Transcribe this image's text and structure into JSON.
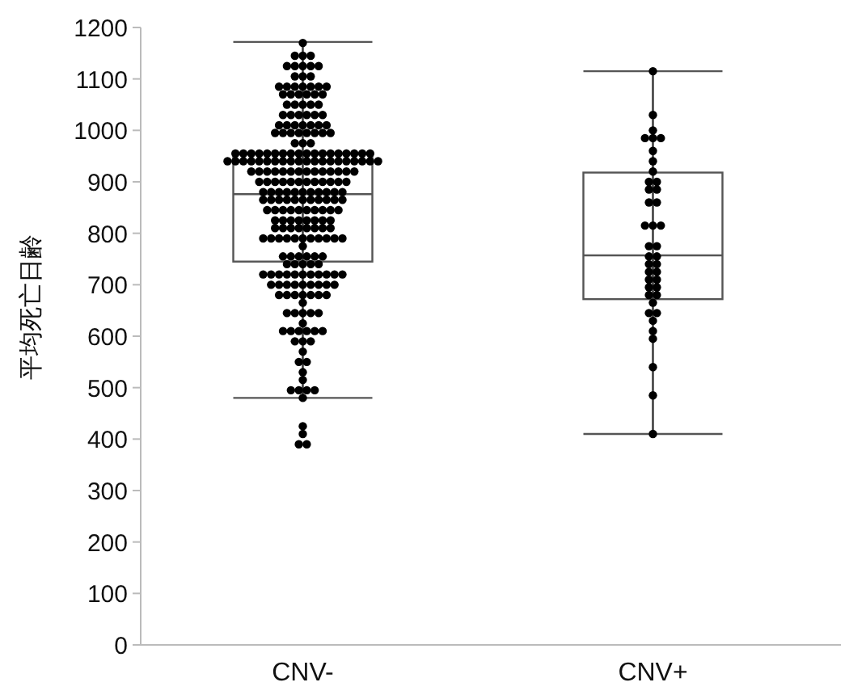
{
  "chart_data": {
    "type": "box",
    "categories": [
      "CNV-",
      "CNV+"
    ],
    "ylabel": "平均死亡日齢",
    "ylim": [
      0,
      1200
    ],
    "yticks": [
      0,
      100,
      200,
      300,
      400,
      500,
      600,
      700,
      800,
      900,
      1000,
      1100,
      1200
    ],
    "grid": false,
    "marker": "circle",
    "boxes": [
      {
        "low": 480,
        "q1": 745,
        "median": 876,
        "q3": 955,
        "high": 1172
      },
      {
        "low": 410,
        "q1": 672,
        "median": 757,
        "q3": 918,
        "high": 1115
      }
    ],
    "series": [
      {
        "type": "scatter",
        "color": "#000000",
        "x": [
          "CNV-",
          "CNV-",
          "CNV-",
          "CNV-",
          "CNV-",
          "CNV-",
          "CNV-",
          "CNV-",
          "CNV-",
          "CNV-",
          "CNV-",
          "CNV-",
          "CNV-",
          "CNV-",
          "CNV-",
          "CNV-",
          "CNV-",
          "CNV-",
          "CNV-",
          "CNV-",
          "CNV-",
          "CNV-",
          "CNV-",
          "CNV-",
          "CNV-",
          "CNV-",
          "CNV-",
          "CNV-",
          "CNV-",
          "CNV-",
          "CNV-",
          "CNV-",
          "CNV-",
          "CNV-",
          "CNV-",
          "CNV-",
          "CNV-",
          "CNV-",
          "CNV-",
          "CNV-",
          "CNV-",
          "CNV-",
          "CNV-",
          "CNV-",
          "CNV-",
          "CNV-",
          "CNV-",
          "CNV-",
          "CNV-",
          "CNV-",
          "CNV-",
          "CNV-",
          "CNV-",
          "CNV-",
          "CNV-",
          "CNV-",
          "CNV-",
          "CNV-",
          "CNV-",
          "CNV-",
          "CNV-",
          "CNV-",
          "CNV-",
          "CNV-",
          "CNV-",
          "CNV-",
          "CNV-",
          "CNV-",
          "CNV-",
          "CNV-",
          "CNV-",
          "CNV-",
          "CNV-",
          "CNV-",
          "CNV-",
          "CNV-",
          "CNV-",
          "CNV-",
          "CNV-",
          "CNV-",
          "CNV-",
          "CNV-",
          "CNV-",
          "CNV-",
          "CNV-",
          "CNV-",
          "CNV-",
          "CNV-",
          "CNV-",
          "CNV-",
          "CNV-",
          "CNV-",
          "CNV-",
          "CNV-",
          "CNV-",
          "CNV-",
          "CNV-",
          "CNV-",
          "CNV-",
          "CNV-",
          "CNV-",
          "CNV-",
          "CNV-",
          "CNV-",
          "CNV-",
          "CNV-",
          "CNV-",
          "CNV-",
          "CNV-",
          "CNV-",
          "CNV-",
          "CNV-",
          "CNV-",
          "CNV-",
          "CNV-",
          "CNV-",
          "CNV-",
          "CNV-",
          "CNV-",
          "CNV-",
          "CNV-",
          "CNV-",
          "CNV-",
          "CNV-",
          "CNV-",
          "CNV-",
          "CNV-",
          "CNV-",
          "CNV-",
          "CNV-",
          "CNV-",
          "CNV-",
          "CNV-",
          "CNV-",
          "CNV-",
          "CNV-",
          "CNV-",
          "CNV-",
          "CNV-",
          "CNV-",
          "CNV-",
          "CNV-",
          "CNV-",
          "CNV-",
          "CNV-",
          "CNV-",
          "CNV-",
          "CNV-",
          "CNV-",
          "CNV-",
          "CNV-",
          "CNV-",
          "CNV-",
          "CNV-",
          "CNV-",
          "CNV-",
          "CNV-",
          "CNV-",
          "CNV-",
          "CNV-",
          "CNV-",
          "CNV-",
          "CNV-",
          "CNV-",
          "CNV-",
          "CNV-",
          "CNV-",
          "CNV-",
          "CNV-",
          "CNV-",
          "CNV-",
          "CNV-",
          "CNV-",
          "CNV-",
          "CNV-",
          "CNV-",
          "CNV-",
          "CNV-",
          "CNV-",
          "CNV-",
          "CNV-",
          "CNV-",
          "CNV-",
          "CNV-",
          "CNV-",
          "CNV-",
          "CNV-",
          "CNV-",
          "CNV-",
          "CNV-",
          "CNV-",
          "CNV-",
          "CNV-",
          "CNV-",
          "CNV-",
          "CNV-",
          "CNV-",
          "CNV-",
          "CNV-",
          "CNV-",
          "CNV-",
          "CNV-",
          "CNV-",
          "CNV-",
          "CNV-",
          "CNV-",
          "CNV-",
          "CNV-",
          "CNV-",
          "CNV-",
          "CNV-",
          "CNV-",
          "CNV-",
          "CNV-",
          "CNV-",
          "CNV-",
          "CNV-",
          "CNV-",
          "CNV-",
          "CNV-",
          "CNV-",
          "CNV-",
          "CNV-",
          "CNV-",
          "CNV-",
          "CNV-",
          "CNV-",
          "CNV-",
          "CNV-",
          "CNV-",
          "CNV-",
          "CNV-",
          "CNV-",
          "CNV-",
          "CNV-",
          "CNV-",
          "CNV-",
          "CNV-",
          "CNV-",
          "CNV-",
          "CNV-",
          "CNV-",
          "CNV-",
          "CNV-",
          "CNV-",
          "CNV-"
        ],
        "values": [
          1170,
          1145,
          1145,
          1145,
          1125,
          1125,
          1125,
          1125,
          1125,
          1105,
          1105,
          1105,
          1085,
          1085,
          1085,
          1085,
          1085,
          1085,
          1085,
          1070,
          1070,
          1070,
          1070,
          1070,
          1070,
          1050,
          1050,
          1050,
          1050,
          1050,
          1030,
          1030,
          1030,
          1030,
          1030,
          1030,
          1010,
          1010,
          1010,
          1010,
          1010,
          1010,
          1010,
          995,
          995,
          995,
          995,
          995,
          995,
          995,
          995,
          975,
          975,
          975,
          955,
          955,
          955,
          955,
          955,
          955,
          955,
          955,
          955,
          955,
          955,
          955,
          955,
          955,
          955,
          955,
          955,
          955,
          940,
          940,
          940,
          940,
          940,
          940,
          940,
          940,
          940,
          940,
          940,
          940,
          940,
          940,
          940,
          940,
          940,
          940,
          940,
          940,
          920,
          920,
          920,
          920,
          920,
          920,
          920,
          920,
          920,
          920,
          920,
          920,
          920,
          920,
          900,
          900,
          900,
          900,
          900,
          900,
          900,
          900,
          900,
          900,
          900,
          900,
          880,
          880,
          880,
          880,
          880,
          880,
          880,
          880,
          880,
          880,
          880,
          865,
          865,
          865,
          865,
          865,
          865,
          865,
          865,
          865,
          865,
          865,
          845,
          845,
          845,
          845,
          845,
          845,
          845,
          845,
          845,
          845,
          825,
          825,
          825,
          825,
          825,
          825,
          825,
          825,
          810,
          810,
          810,
          810,
          810,
          810,
          810,
          810,
          790,
          790,
          790,
          790,
          790,
          790,
          790,
          790,
          790,
          790,
          790,
          775,
          755,
          755,
          755,
          755,
          755,
          755,
          740,
          740,
          740,
          740,
          740,
          720,
          720,
          720,
          720,
          720,
          720,
          720,
          720,
          720,
          720,
          720,
          700,
          700,
          700,
          700,
          700,
          700,
          700,
          700,
          700,
          680,
          680,
          680,
          680,
          680,
          680,
          680,
          665,
          645,
          645,
          645,
          645,
          645,
          625,
          610,
          610,
          610,
          610,
          610,
          610,
          590,
          590,
          590,
          570,
          550,
          550,
          530,
          515,
          495,
          495,
          495,
          495,
          480,
          425,
          410,
          390,
          390
        ]
      },
      {
        "type": "scatter",
        "color": "#000000",
        "x": [
          "CNV+",
          "CNV+",
          "CNV+",
          "CNV+",
          "CNV+",
          "CNV+",
          "CNV+",
          "CNV+",
          "CNV+",
          "CNV+",
          "CNV+",
          "CNV+",
          "CNV+",
          "CNV+",
          "CNV+",
          "CNV+",
          "CNV+",
          "CNV+",
          "CNV+",
          "CNV+",
          "CNV+",
          "CNV+",
          "CNV+",
          "CNV+",
          "CNV+",
          "CNV+",
          "CNV+",
          "CNV+",
          "CNV+",
          "CNV+",
          "CNV+",
          "CNV+",
          "CNV+",
          "CNV+",
          "CNV+",
          "CNV+",
          "CNV+",
          "CNV+",
          "CNV+",
          "CNV+",
          "CNV+"
        ],
        "values": [
          410,
          485,
          540,
          595,
          610,
          630,
          645,
          645,
          665,
          680,
          680,
          695,
          695,
          710,
          710,
          725,
          725,
          740,
          740,
          755,
          755,
          775,
          775,
          815,
          815,
          815,
          860,
          860,
          885,
          885,
          900,
          900,
          920,
          940,
          960,
          985,
          985,
          985,
          1000,
          1030,
          1115
        ]
      }
    ]
  }
}
